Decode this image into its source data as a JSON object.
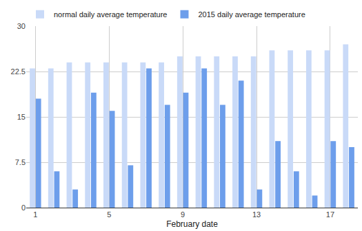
{
  "chart_data": {
    "type": "bar",
    "x_label": "February date",
    "x": [
      1,
      2,
      3,
      4,
      5,
      6,
      7,
      8,
      9,
      10,
      11,
      12,
      13,
      14,
      15,
      16,
      17,
      18
    ],
    "series": [
      {
        "name": "normal daily average temperature",
        "color": "#c9daf8",
        "values": [
          23,
          23,
          24,
          24,
          24,
          24,
          24,
          24,
          25,
          25,
          25,
          25,
          25,
          26,
          26,
          26,
          26,
          27
        ]
      },
      {
        "name": "2015 daily average temperature",
        "color": "#6d9eeb",
        "values": [
          18,
          6,
          3,
          19,
          16,
          7,
          23,
          17,
          19,
          23,
          17,
          21,
          3,
          11,
          6,
          2,
          11,
          10
        ]
      }
    ],
    "xlim": [
      0.5,
      18.5
    ],
    "xticks": [
      1,
      5,
      9,
      13,
      17
    ],
    "ylim": [
      0,
      30
    ],
    "yticks": [
      0,
      7.5,
      15,
      22.5,
      30
    ],
    "grid": true,
    "legend": "top left"
  }
}
